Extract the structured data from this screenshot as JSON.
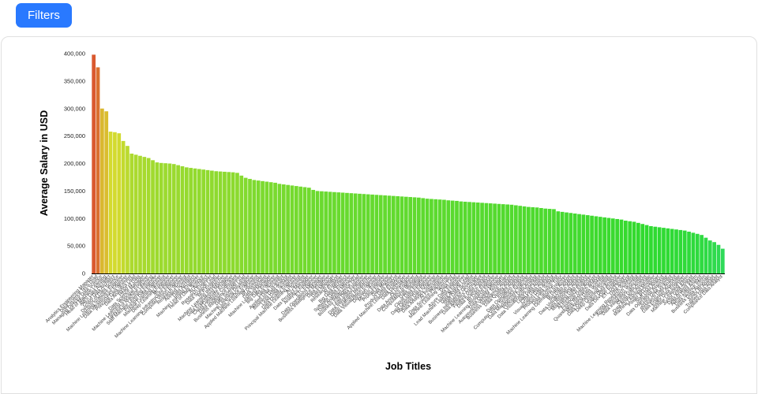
{
  "toolbar": {
    "filters_label": "Filters"
  },
  "colors": {
    "filters_button": "#2979ff",
    "axis_text": "#000000",
    "tick_text": "#3a3a3a",
    "bar_top_color": "#f04e10",
    "bar_bottom_color": "#3fe085"
  },
  "chart_data": {
    "type": "bar",
    "title": "",
    "xlabel": "Job Titles",
    "ylabel": "Average Salary in USD",
    "ylim": [
      0,
      400000
    ],
    "ytick_interval": 50000,
    "grid": false,
    "legend": "none",
    "color_map": {
      "hue_at_max": 14,
      "hue_at_zero": 150,
      "saturation_pct": 70,
      "lightness_pct": 52
    },
    "categories": [
      "Analytics Engineering Manager",
      "Data Science Tech Lead",
      "Managing Director Data Science",
      "Head of Machine Learning",
      "AWS Data Architect",
      "Cloud Data Architect",
      "Director of Data Science",
      "Machine Learning Software Engineer",
      "Data Infrastructure Engineer",
      "Principal Data Scientist",
      "Data Analytics Lead",
      "Head of Data",
      "Data Science Manager",
      "Machine Learning Principal Engineer",
      "Director of Machine Learning",
      "Staff Machine Learning Engineer",
      "Principal Data Engineer",
      "Machine Learning Scientist",
      "Deep Learning Engineer",
      "ML Engineer",
      "Machine Learning Infrastructure Engineer",
      "Computer Vision Engineer",
      "Research Scientist",
      "Applied Scientist",
      "Data Architect",
      "Machine Learning Engineer",
      "Head of Data Science",
      "AI Architect",
      "Research Engineer",
      "Data Science Lead",
      "NLP Engineer",
      "Machine Learning Researcher",
      "Data Engineering Manager",
      "Cloud Database Engineer",
      "Data Science Consultant",
      "Business Intelligence Engineer",
      "Data Scientist Lead",
      "Machine Learning Developer",
      "Data Science Engineer",
      "Applied Machine Learning Scientist",
      "BI Developer",
      "Data Specialist",
      "Machine Learning Manager",
      "Big Data Engineer",
      "Data Scientist",
      "Applied Data Scientist",
      "Business Data Analyst",
      "Lead Data Scientist",
      "Data Quality Engineer",
      "Principal Machine Learning Scientist",
      "AI Scientist",
      "Data Product Manager",
      "Analytics Engineer",
      "ETL Engineer",
      "Data Operations Manager",
      "Business Intelligence Manager",
      "Data Engineer",
      "Data Manager",
      "Research Analyst",
      "AI Engineer",
      "Big Data Architect",
      "Software Data Engineer",
      "Data Analytics Manager",
      "Business Intelligence Lead",
      "Lead Data Engineer",
      "Data Integration Engineer",
      "Deep Learning Researcher",
      "Data Visualization Engineer",
      "Decision Scientist",
      "MLOps Engineer",
      "Prompt Engineer",
      "Data Modeler",
      "Product Data Analyst",
      "Applied Machine Learning Engineer",
      "Data Developer",
      "AI Developer",
      "Data Analytics Engineer",
      "Computational Biologist",
      "Data Strategist",
      "Cloud Data Engineer",
      "Data Operations Engineer",
      "Marketing Data Engineer",
      "Data Analytics Specialist",
      "AI Programmer",
      "Data Science Practitioner",
      "Machine Learning Specialist",
      "Data Lead",
      "Azure Data Engineer",
      "Lead Machine Learning Engineer",
      "Data Analyst Lead",
      "Staff Data Scientist",
      "Business Intelligence Developer",
      "Data Analytics Consultant",
      "Finance Data Analyst",
      "Data Science Analyst",
      "BI Data Engineer",
      "Machine Learning Research Engineer",
      "Data Quality Manager",
      "Autonomous Vehicle Technician",
      "Business Intelligence Analyst",
      "Data Quality Analyst",
      "Insight Analyst",
      "Data Operations Analyst",
      "Computer Vision Software Engineer",
      "Data Management Specialist",
      "Principal Data Analyst",
      "Data Visualization Specialist",
      "Lead Data Analyst",
      "CRM Data Analyst",
      "Visualization Data Analyst",
      "Product Data Scientist",
      "Data Science Tutor",
      "Machine Learning Operations Engineer",
      "BI Data Analyst",
      "Big Data Analyst",
      "Data Visualization Analyst",
      "Data Reporting Analyst",
      "Marketing Data Analyst",
      "AI Research Engineer",
      "Financial Data Analyst",
      "Quantitative Research Analyst",
      "Marketing Data Scientist",
      "Data Operations Specialist",
      "Deep Learning Scientist",
      "Sales Data Analyst",
      "Data DevOps Engineer",
      "ETL Developer",
      "Data Analyst",
      "Machine Learning Research Scientist",
      "Applied Research Scientist",
      "Data Integration Specialist",
      "Cloud Data Analyst",
      "Data Analytics Associate",
      "Machine Learning Modeler",
      "Power BI Developer",
      "Staff Data Analyst",
      "Data Operations Associate",
      "Junior Data Scientist",
      "Research Data Analyst",
      "Data Engineer Associate",
      "Junior Data Engineer",
      "Machine Learning Intern",
      "Junior Data Analyst",
      "Data Analyst Intern",
      "Admin Data Analyst",
      "Data Science Intern",
      "Business Data Associate",
      "Junior BI Analyst",
      "Trainee Data Analyst",
      "Compliance Data Analyst"
    ],
    "values": [
      398000,
      375000,
      300000,
      295000,
      258000,
      257000,
      255000,
      241000,
      232000,
      218000,
      216000,
      214000,
      212000,
      210000,
      206000,
      202000,
      201000,
      200500,
      200000,
      199000,
      197000,
      195000,
      193000,
      192000,
      191000,
      190000,
      189000,
      188000,
      187000,
      186000,
      185500,
      185000,
      184500,
      184000,
      183000,
      178000,
      174000,
      172000,
      170000,
      169000,
      168000,
      167000,
      166000,
      165000,
      163000,
      162000,
      161000,
      160000,
      159000,
      158000,
      157000,
      156000,
      152000,
      150000,
      149500,
      149000,
      148500,
      148000,
      147500,
      147000,
      146500,
      146000,
      145500,
      145000,
      144500,
      144000,
      143500,
      143000,
      142500,
      142000,
      141500,
      141000,
      140500,
      140000,
      139500,
      139000,
      138500,
      138000,
      137000,
      136000,
      135500,
      135000,
      134500,
      134000,
      133000,
      132500,
      132000,
      131000,
      130500,
      130000,
      129500,
      129000,
      128500,
      128000,
      127500,
      127000,
      126500,
      126000,
      125500,
      125000,
      124000,
      123000,
      122000,
      121000,
      120500,
      120000,
      119000,
      118000,
      117500,
      117000,
      113000,
      112000,
      111000,
      110000,
      109000,
      108000,
      107000,
      106000,
      105000,
      104000,
      103000,
      102000,
      101000,
      100000,
      99000,
      98000,
      96000,
      95000,
      94000,
      92000,
      90000,
      88000,
      86000,
      85000,
      84000,
      83000,
      82000,
      81000,
      80000,
      79000,
      78000,
      76000,
      74000,
      72000,
      70000,
      65000,
      60000,
      57000,
      52000,
      45000
    ]
  }
}
